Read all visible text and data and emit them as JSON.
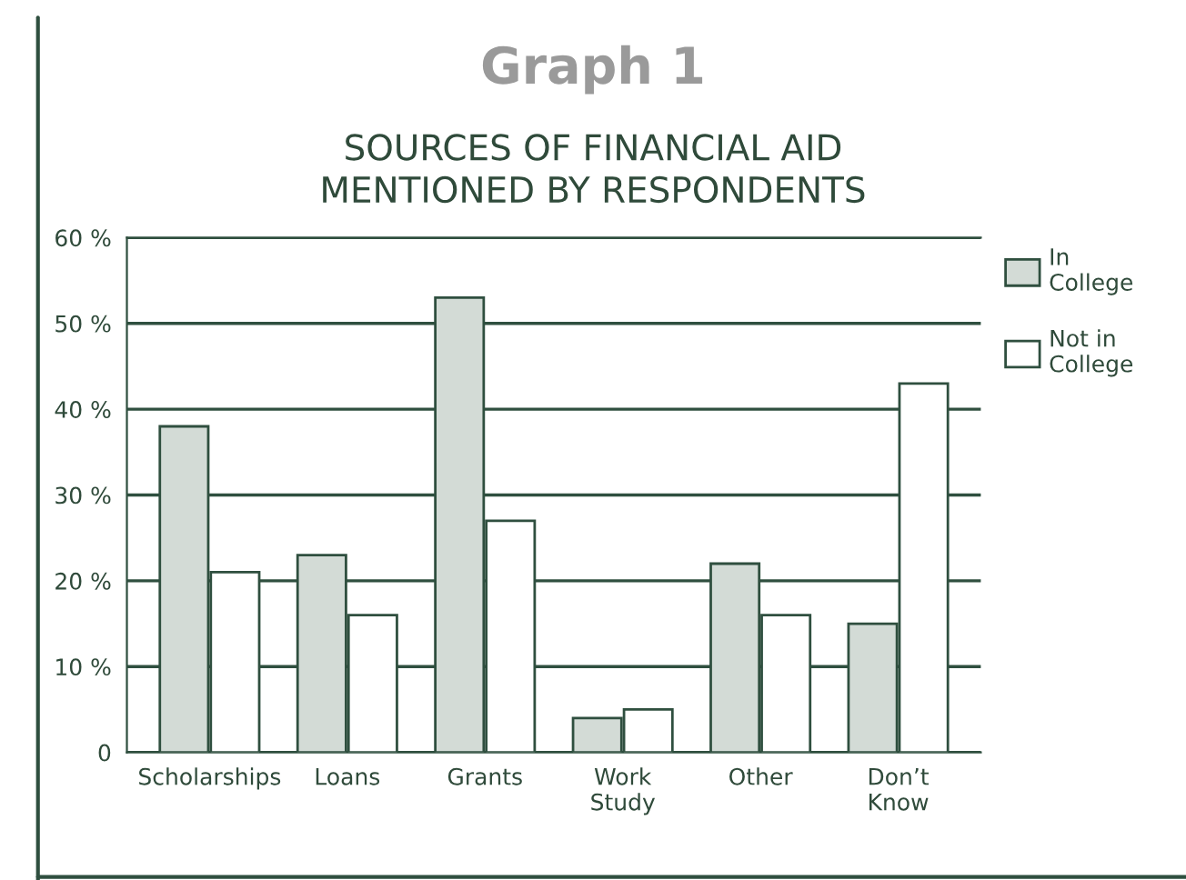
{
  "chart_data": {
    "type": "bar",
    "title": "Graph 1",
    "subtitle": "SOURCES OF FINANCIAL AID\nMENTIONED BY RESPONDENTS",
    "categories": [
      "Scholarships",
      "Loans",
      "Grants",
      "Work\nStudy",
      "Other",
      "Don’t\nKnow"
    ],
    "series": [
      {
        "name": "In\nCollege",
        "color": "#d3dbd6",
        "values": [
          38,
          23,
          53,
          4,
          22,
          15
        ]
      },
      {
        "name": "Not in\nCollege",
        "color": "#ffffff",
        "values": [
          21,
          16,
          27,
          5,
          16,
          43
        ]
      }
    ],
    "ylim": [
      0,
      60
    ],
    "yticks": [
      0,
      {
        "value": 10,
        "label": "10 %"
      },
      {
        "value": 20,
        "label": "20 %"
      },
      {
        "value": 30,
        "label": "30 %"
      },
      {
        "value": 40,
        "label": "40 %"
      },
      {
        "value": 50,
        "label": "50 %"
      },
      {
        "value": 60,
        "label": "60 %"
      }
    ],
    "grid": "y",
    "legend": "right"
  }
}
